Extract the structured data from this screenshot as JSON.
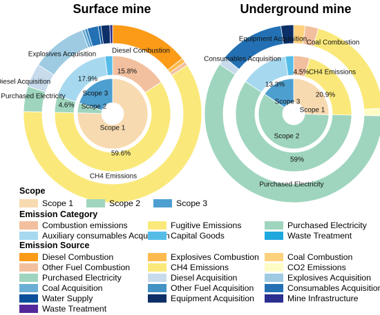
{
  "chart_data": [
    {
      "type": "pie",
      "title": "Surface mine",
      "rings": {
        "scope": [
          {
            "name": "Scope 1",
            "value": 75.4,
            "label": "Scope 1"
          },
          {
            "name": "Scope 2",
            "value": 4.6,
            "label": "Scope 2"
          },
          {
            "name": "Scope 3",
            "value": 20.0,
            "label": "Scope 3"
          }
        ],
        "emission_category": [
          {
            "name": "Combustion emissions",
            "value": 15.8,
            "label": "15.8%"
          },
          {
            "name": "Fugitive Emissions",
            "value": 59.6,
            "label": "59.6%"
          },
          {
            "name": "Purchased Electricity",
            "value": 4.6,
            "label": "4.6%"
          },
          {
            "name": "Auxiliary consumables Acquisition",
            "value": 17.9,
            "label": "17.9%"
          },
          {
            "name": "Capital Goods",
            "value": 2.1,
            "label": ""
          }
        ],
        "emission_source": [
          {
            "name": "Diesel Combustion",
            "value": 14.3,
            "label": "Diesel Combustion"
          },
          {
            "name": "Explosives Combustion",
            "value": 0.8,
            "label": ""
          },
          {
            "name": "Other Fuel Combustion",
            "value": 0.7,
            "label": ""
          },
          {
            "name": "CH4 Emissions",
            "value": 59.6,
            "label": "CH4 Emissions"
          },
          {
            "name": "Purchased Electricity",
            "value": 4.6,
            "label": "Purchased Electricity"
          },
          {
            "name": "Diesel Acquisition",
            "value": 4.3,
            "label": "Diesel Acquisition"
          },
          {
            "name": "Explosives Acquisition",
            "value": 10.1,
            "label": "Explosives Acquisition"
          },
          {
            "name": "Coal Acquisition",
            "value": 0.5,
            "label": ""
          },
          {
            "name": "Other Fuel Acquisition",
            "value": 0.5,
            "label": ""
          },
          {
            "name": "Consumables Acquisition",
            "value": 2.0,
            "label": ""
          },
          {
            "name": "Water Supply",
            "value": 0.5,
            "label": ""
          },
          {
            "name": "Equipment Acquisition",
            "value": 1.6,
            "label": ""
          },
          {
            "name": "Mine Infrastructure",
            "value": 0.5,
            "label": ""
          }
        ]
      }
    },
    {
      "type": "pie",
      "title": "Underground mine",
      "rings": {
        "scope": [
          {
            "name": "Scope 1",
            "value": 25.5,
            "label": "Scope 1"
          },
          {
            "name": "Scope 2",
            "value": 59.0,
            "label": "Scope 2"
          },
          {
            "name": "Scope 3",
            "value": 15.5,
            "label": "Scope 3"
          }
        ],
        "emission_category": [
          {
            "name": "Combustion emissions",
            "value": 4.5,
            "label": "4.5%"
          },
          {
            "name": "Fugitive Emissions",
            "value": 20.9,
            "label": "20.9%"
          },
          {
            "name": "Purchased Electricity",
            "value": 59.0,
            "label": "59%"
          },
          {
            "name": "Auxiliary consumables Acquisition",
            "value": 13.3,
            "label": "13.3%"
          },
          {
            "name": "Capital Goods",
            "value": 2.3,
            "label": ""
          }
        ],
        "emission_source": [
          {
            "name": "Coal Combustion",
            "value": 2.1,
            "label": "Coal Combustion"
          },
          {
            "name": "Other Fuel Combustion",
            "value": 2.4,
            "label": ""
          },
          {
            "name": "CH4 Emissions",
            "value": 19.5,
            "label": "CH4 Emissions"
          },
          {
            "name": "CO2 Emissions",
            "value": 1.4,
            "label": ""
          },
          {
            "name": "Purchased Electricity",
            "value": 59.0,
            "label": "Purchased Electricity"
          },
          {
            "name": "Diesel Acquisition",
            "value": 1.5,
            "label": ""
          },
          {
            "name": "Consumables Acquisition",
            "value": 11.8,
            "label": "Consumables Acquisition"
          },
          {
            "name": "Equipment Acquisition",
            "value": 2.3,
            "label": "Equipment Acquisition"
          }
        ]
      }
    }
  ],
  "colors": {
    "Scope 1": "#f8dab0",
    "Scope 2": "#9fd5be",
    "Scope 3": "#4d9fd0",
    "Combustion emissions": "#f2c09e",
    "Fugitive Emissions": "#fae97a",
    "Auxiliary consumables Acquisition": "#a6d9f0",
    "Capital Goods": "#55bce8",
    "Waste Treatment": "#1ea8de",
    "Diesel Combustion": "#fb9b17",
    "Explosives Combustion": "#fdbb4f",
    "Coal Combustion": "#fed17c",
    "Other Fuel Combustion": "#f2c09e",
    "CH4 Emissions": "#fae97a",
    "CO2 Emissions": "#fdfcc5",
    "Purchased Electricity": "#9fd5be",
    "Diesel Acquisition": "#c7dbec",
    "Explosives Acquisition": "#9ecbe2",
    "Coal Acquisition": "#6baed5",
    "Other Fuel Acquisition": "#4292c5",
    "Consumables Acquisition": "#2371b4",
    "Water Supply": "#0b4f9a",
    "Equipment Acquisition": "#0b2f66",
    "Mine Infrastructure": "#2a2f90",
    "Waste Treatment Source": "#54289a"
  },
  "legend": {
    "scope": {
      "title": "Scope",
      "items": [
        "Scope 1",
        "Scope 2",
        "Scope 3"
      ]
    },
    "category": {
      "title": "Emission Category",
      "items": [
        "Combustion emissions",
        "Fugitive Emissions",
        "Purchased Electricity",
        "Auxiliary consumables Acquisition",
        "Capital Goods",
        "Waste Treatment"
      ]
    },
    "source": {
      "title": "Emission Source",
      "items": [
        "Diesel Combustion",
        "Explosives Combustion",
        "Coal Combustion",
        "Other Fuel Combustion",
        "CH4 Emissions",
        "CO2 Emissions",
        "Purchased Electricity",
        "Diesel Acquisition",
        "Explosives Acquisition",
        "Coal Acquisition",
        "Other Fuel Acquisition",
        "Consumables Acquisition",
        "Water Supply",
        "Equipment Acquisition",
        "Mine Infrastructure",
        "Waste Treatment"
      ]
    }
  }
}
